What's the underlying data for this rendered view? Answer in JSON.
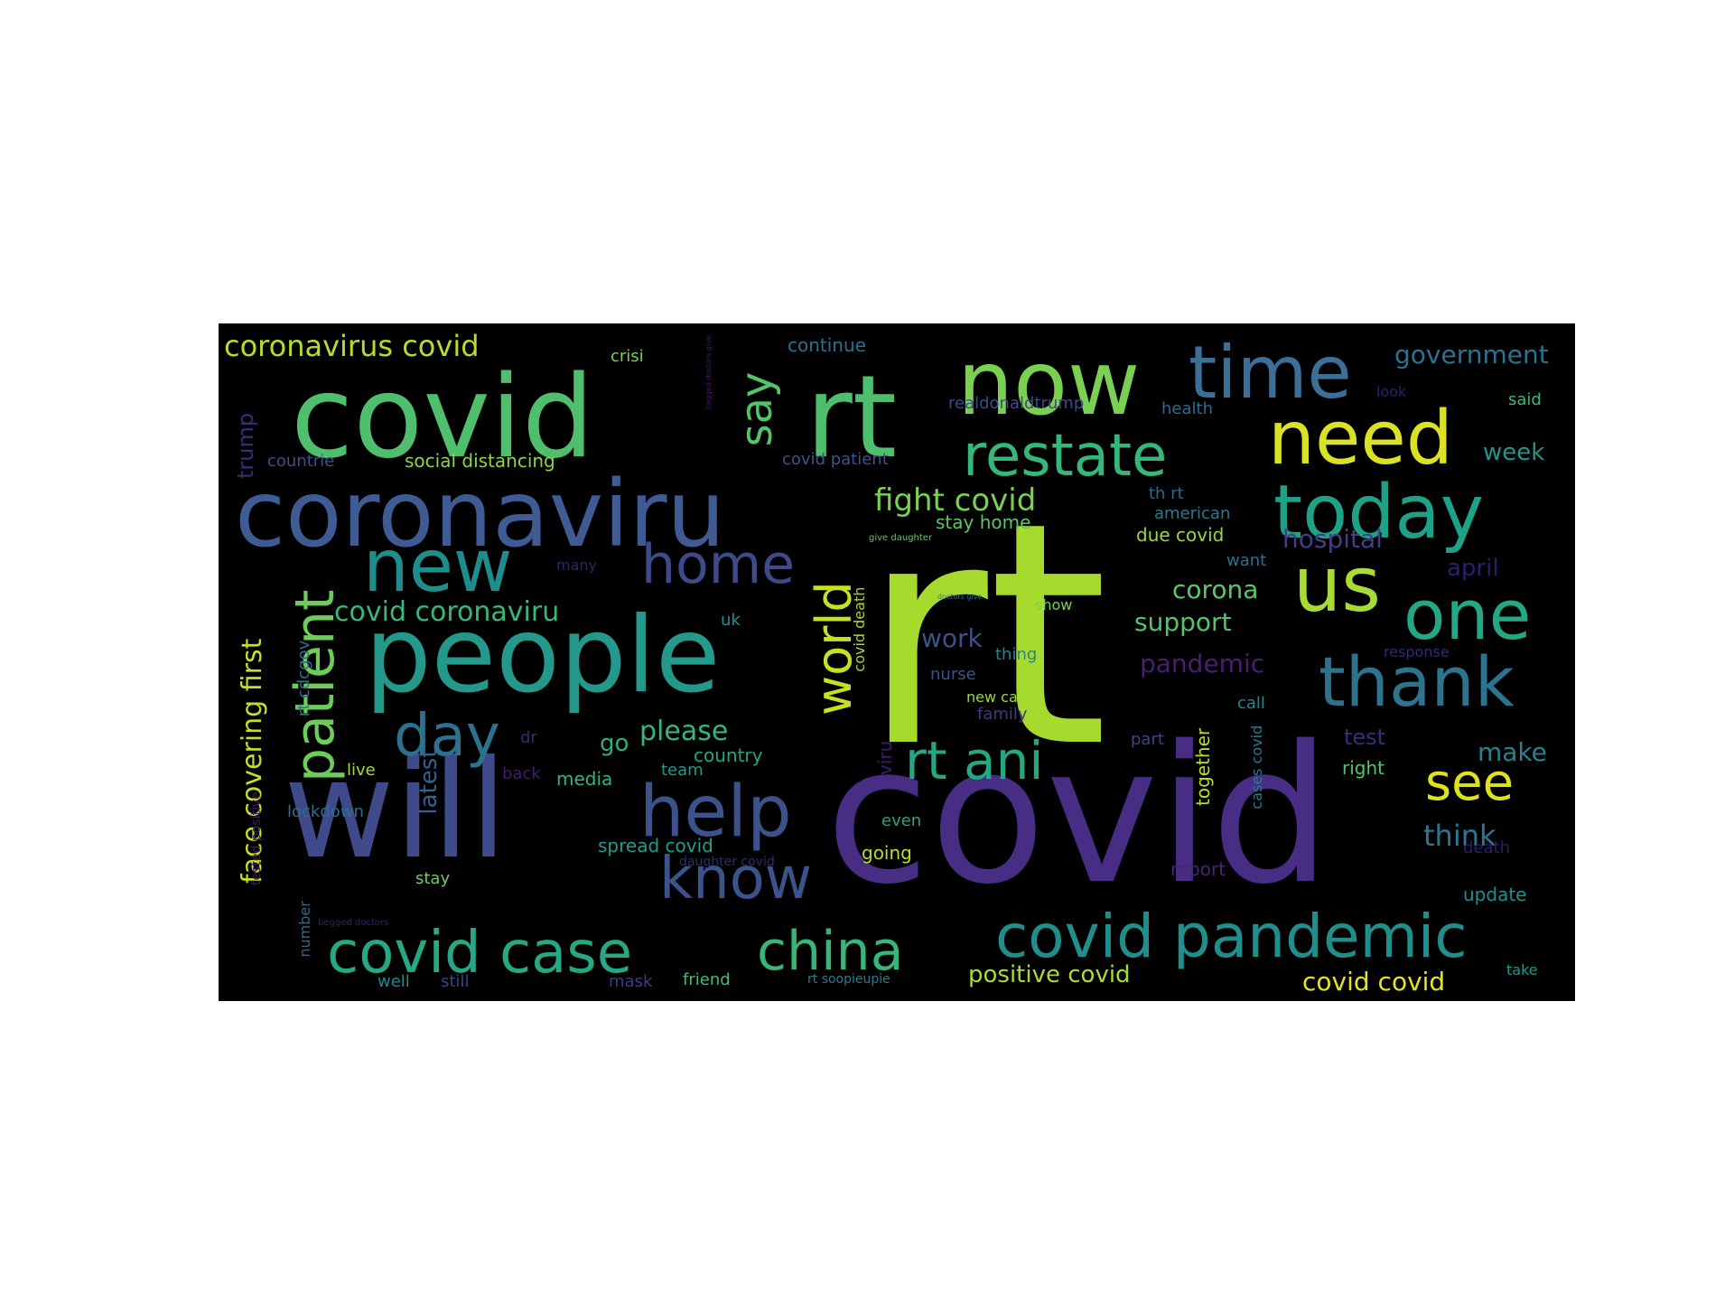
{
  "wordcloud": {
    "words": [
      {
        "text": "rt",
        "color": "#a6db2e"
      },
      {
        "text": "covid",
        "color": "#482d85"
      },
      {
        "text": "covid",
        "color": "#4fbf6e"
      },
      {
        "text": "rt",
        "color": "#4fbf6e"
      },
      {
        "text": "will",
        "color": "#3e4a89"
      },
      {
        "text": "coronaviru",
        "color": "#3e5b93"
      },
      {
        "text": "people",
        "color": "#24988a"
      },
      {
        "text": "now",
        "color": "#7ad151"
      },
      {
        "text": "time",
        "color": "#3b6f98"
      },
      {
        "text": "need",
        "color": "#dbe225"
      },
      {
        "text": "today",
        "color": "#1fa187"
      },
      {
        "text": "new",
        "color": "#1e8d8c"
      },
      {
        "text": "restate",
        "color": "#35b779"
      },
      {
        "text": "us",
        "color": "#a8db34"
      },
      {
        "text": "one",
        "color": "#24a884"
      },
      {
        "text": "thank",
        "color": "#2c738e"
      },
      {
        "text": "help",
        "color": "#3b528b"
      },
      {
        "text": "covid pandemic",
        "color": "#208f8c"
      },
      {
        "text": "covid case",
        "color": "#26a884"
      },
      {
        "text": "china",
        "color": "#35b779"
      },
      {
        "text": "know",
        "color": "#3a538b"
      },
      {
        "text": "home",
        "color": "#3e4a89"
      },
      {
        "text": "day",
        "color": "#2c728e"
      },
      {
        "text": "patient",
        "color": "#6ccd59"
      },
      {
        "text": "world",
        "color": "#c8e020"
      },
      {
        "text": "rt ani",
        "color": "#24a884"
      },
      {
        "text": "see",
        "color": "#dde318"
      },
      {
        "text": "say",
        "color": "#52c569"
      },
      {
        "text": "face covering first",
        "color": "#c5df22"
      },
      {
        "text": "coronavirus covid",
        "color": "#b5de2b"
      },
      {
        "text": "fight covid",
        "color": "#7ad151"
      },
      {
        "text": "covid coronaviru",
        "color": "#37b878"
      },
      {
        "text": "please",
        "color": "#35b779"
      },
      {
        "text": "government",
        "color": "#2c728e"
      },
      {
        "text": "think",
        "color": "#2a788e"
      },
      {
        "text": "make",
        "color": "#26828e"
      },
      {
        "text": "week",
        "color": "#1f968b"
      },
      {
        "text": "support",
        "color": "#52c569"
      },
      {
        "text": "corona",
        "color": "#5ac864"
      },
      {
        "text": "pandemic",
        "color": "#481f70"
      },
      {
        "text": "hospital",
        "color": "#433e85"
      },
      {
        "text": "work",
        "color": "#3b528b"
      },
      {
        "text": "positive covid",
        "color": "#a8db34"
      },
      {
        "text": "covid covid",
        "color": "#e5e419"
      },
      {
        "text": "social distancing",
        "color": "#8bd646"
      },
      {
        "text": "trump",
        "color": "#3f2a7a"
      },
      {
        "text": "latest",
        "color": "#34618d"
      },
      {
        "text": "april",
        "color": "#2b1f6e"
      },
      {
        "text": "test",
        "color": "#3a2c79"
      },
      {
        "text": "update",
        "color": "#21908d"
      },
      {
        "text": "together",
        "color": "#bddf26"
      },
      {
        "text": "go",
        "color": "#2ab07f"
      },
      {
        "text": "country",
        "color": "#21a685"
      },
      {
        "text": "media",
        "color": "#31b57b"
      },
      {
        "text": "spread covid",
        "color": "#1f9e89"
      },
      {
        "text": "covid death",
        "color": "#a0da39"
      },
      {
        "text": "death",
        "color": "#2d1e6b"
      },
      {
        "text": "report",
        "color": "#482576"
      },
      {
        "text": "nurse",
        "color": "#3b528b"
      },
      {
        "text": "right",
        "color": "#52c569"
      },
      {
        "text": "rt cdcgov",
        "color": "#2d708e"
      },
      {
        "text": "viru",
        "color": "#3e1e6c"
      },
      {
        "text": "going",
        "color": "#b8de29"
      },
      {
        "text": "continue",
        "color": "#2d708e"
      },
      {
        "text": "crisi",
        "color": "#7ad151"
      },
      {
        "text": "look",
        "color": "#2e1f6a"
      },
      {
        "text": "said",
        "color": "#3aba76"
      },
      {
        "text": "health",
        "color": "#2e6b8e"
      },
      {
        "text": "realdonaldtrump",
        "color": "#3b4a8a"
      },
      {
        "text": "covid patient",
        "color": "#3a548c"
      },
      {
        "text": "countrie",
        "color": "#3b4f8a"
      },
      {
        "text": "stay home",
        "color": "#58c765"
      },
      {
        "text": "th rt",
        "color": "#31688e"
      },
      {
        "text": "american",
        "color": "#2a778e"
      },
      {
        "text": "due covid",
        "color": "#95d840"
      },
      {
        "text": "want",
        "color": "#2c728e"
      },
      {
        "text": "many",
        "color": "#3b1d6b"
      },
      {
        "text": "give daughter",
        "color": "#5fca61"
      },
      {
        "text": "doctors give",
        "color": "#2b788e"
      },
      {
        "text": "show",
        "color": "#7ad151"
      },
      {
        "text": "uk",
        "color": "#21918c"
      },
      {
        "text": "thing",
        "color": "#25858e"
      },
      {
        "text": "new case",
        "color": "#9bd93c"
      },
      {
        "text": "family",
        "color": "#44377f"
      },
      {
        "text": "call",
        "color": "#25848e"
      },
      {
        "text": "part",
        "color": "#414487"
      },
      {
        "text": "dr",
        "color": "#2d2f6e"
      },
      {
        "text": "live",
        "color": "#a2da37"
      },
      {
        "text": "team",
        "color": "#1e9b8a"
      },
      {
        "text": "back",
        "color": "#3f1f6c"
      },
      {
        "text": "lockdown",
        "color": "#2a6f8e"
      },
      {
        "text": "even",
        "color": "#2e9f86"
      },
      {
        "text": "daughter covid",
        "color": "#2a2f6c"
      },
      {
        "text": "stay",
        "color": "#6ccd59"
      },
      {
        "text": "cases covid",
        "color": "#2a788e"
      },
      {
        "text": "response",
        "color": "#2f2d6f"
      },
      {
        "text": "tested positive",
        "color": "#3a1d69"
      },
      {
        "text": "number",
        "color": "#30698e"
      },
      {
        "text": "begged doctors",
        "color": "#3d1d69"
      },
      {
        "text": "well",
        "color": "#23888e"
      },
      {
        "text": "still",
        "color": "#2c478b"
      },
      {
        "text": "mask",
        "color": "#3a3f82"
      },
      {
        "text": "friend",
        "color": "#42be71"
      },
      {
        "text": "rt soopieupie",
        "color": "#2b7a8e"
      },
      {
        "text": "take",
        "color": "#22978a"
      },
      {
        "text": "begged doctors give",
        "color": "#44196b"
      }
    ]
  }
}
